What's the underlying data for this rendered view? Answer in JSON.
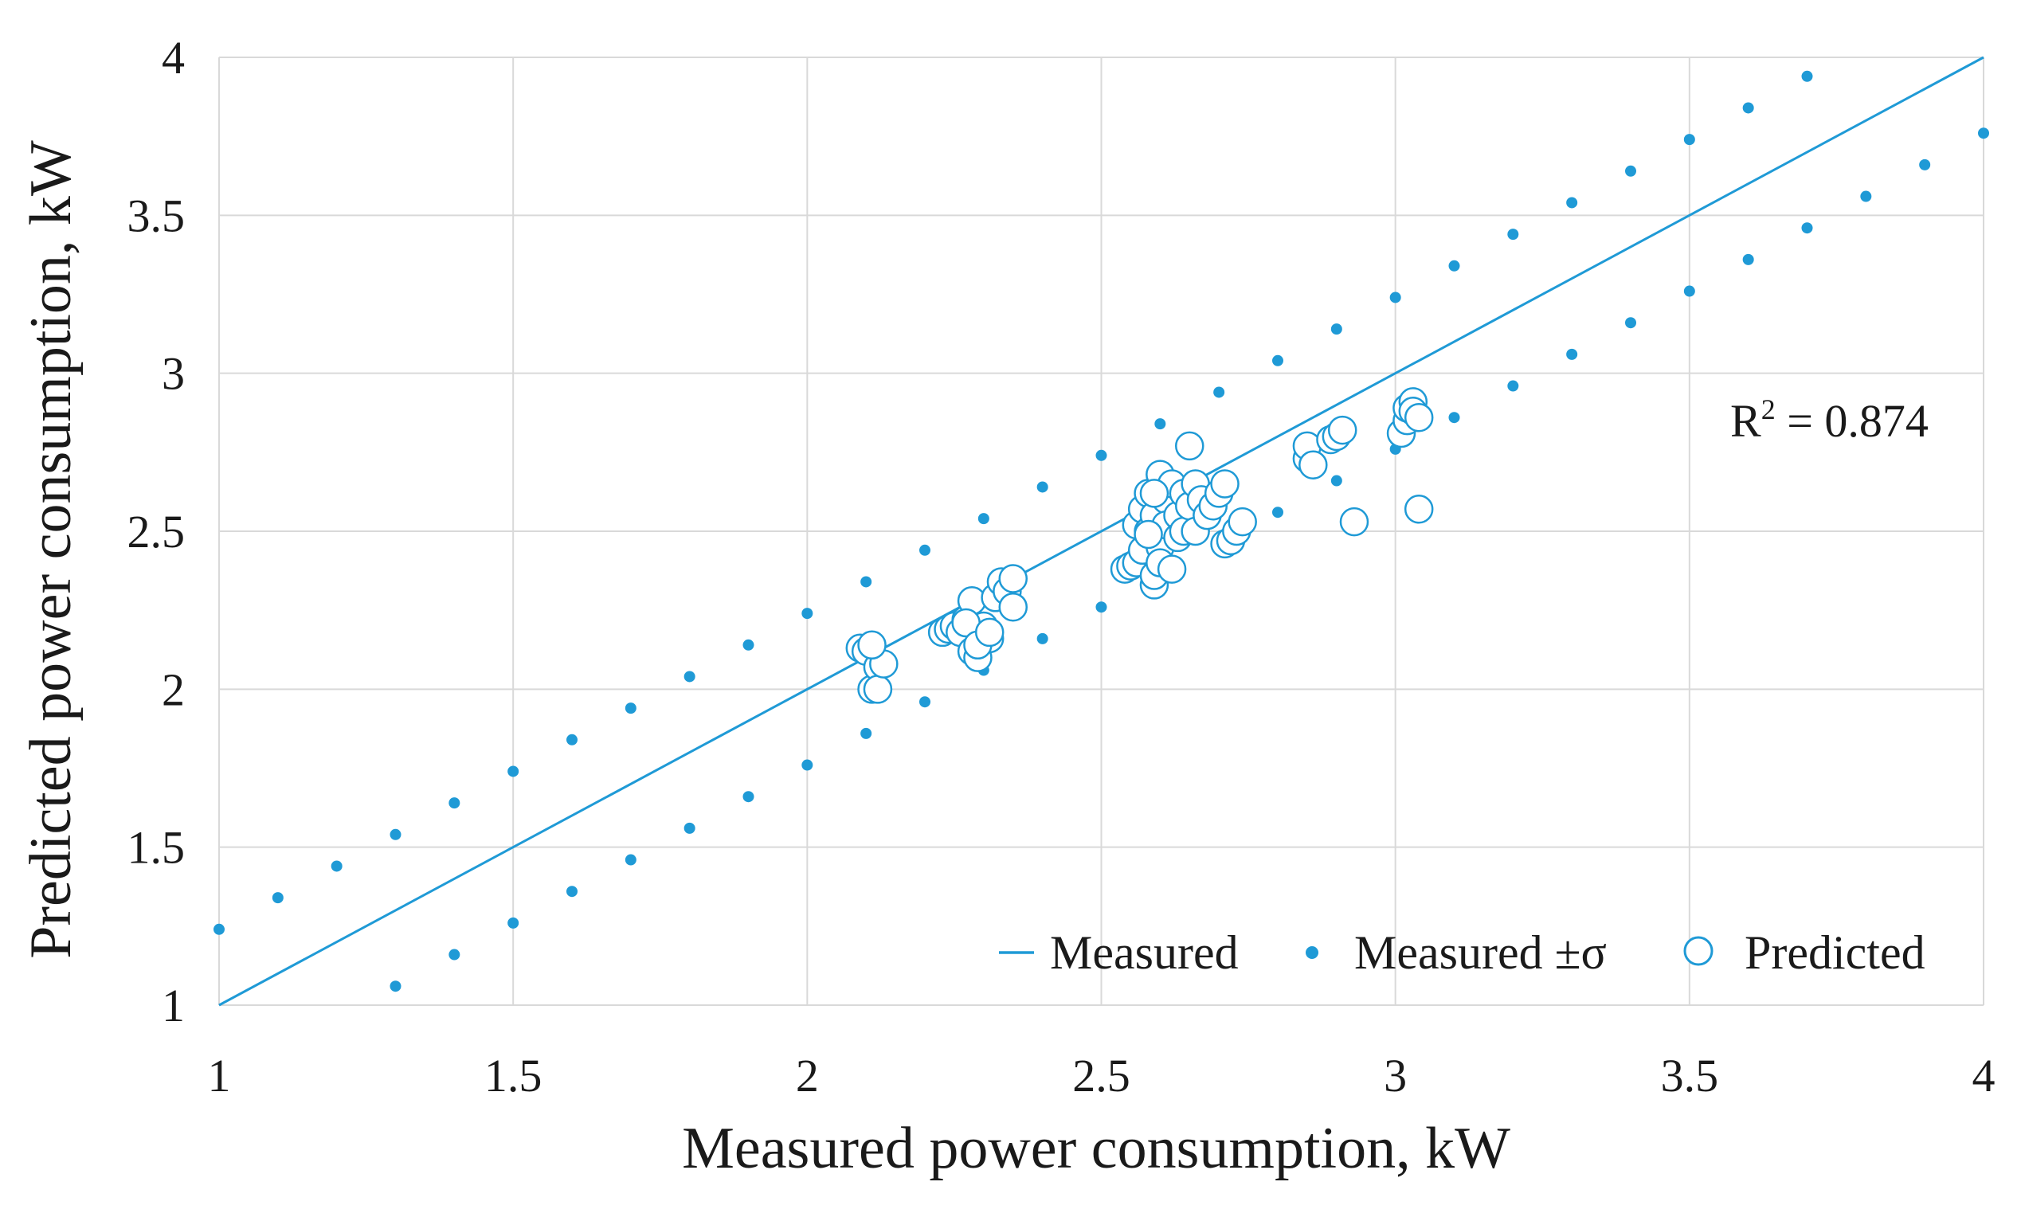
{
  "chart_data": {
    "type": "scatter",
    "title": "",
    "xlabel": "Measured power consumption, kW",
    "ylabel": "Predicted power consumption, kW",
    "xlim": [
      1,
      4
    ],
    "ylim": [
      1,
      4
    ],
    "xticks": [
      "1",
      "1.5",
      "2",
      "2.5",
      "3",
      "3.5",
      "4"
    ],
    "yticks": [
      "1",
      "1.5",
      "2",
      "2.5",
      "3",
      "3.5",
      "4"
    ],
    "grid": true,
    "legend_position": "bottom-right",
    "annotation": {
      "base": "R",
      "sup": "2",
      "rest": " = 0.874"
    },
    "colors": {
      "series": "#1f9ad6",
      "grid": "#d9d9d9",
      "text": "#1a1a1a"
    },
    "series": [
      {
        "name": "Measured",
        "kind": "line",
        "x": [
          1,
          4
        ],
        "y": [
          1,
          4
        ]
      },
      {
        "name": "Measured ±σ",
        "kind": "dots",
        "x": [
          1.0,
          1.1,
          1.2,
          1.3,
          1.4,
          1.5,
          1.6,
          1.7,
          1.8,
          1.9,
          2.0,
          2.1,
          2.2,
          2.3,
          2.4,
          2.5,
          2.6,
          2.7,
          2.8,
          2.9,
          3.0,
          3.1,
          3.2,
          3.3,
          3.4,
          3.5,
          3.6,
          3.7,
          1.3,
          1.4,
          1.5,
          1.6,
          1.7,
          1.8,
          1.9,
          2.0,
          2.1,
          2.2,
          2.3,
          2.4,
          2.5,
          2.6,
          2.7,
          2.8,
          2.9,
          3.0,
          3.1,
          3.2,
          3.3,
          3.4,
          3.5,
          3.6,
          3.7,
          3.8,
          3.9,
          4.0
        ],
        "y": [
          1.24,
          1.34,
          1.44,
          1.54,
          1.64,
          1.74,
          1.84,
          1.94,
          2.04,
          2.14,
          2.24,
          2.34,
          2.44,
          2.54,
          2.64,
          2.74,
          2.84,
          2.94,
          3.04,
          3.14,
          3.24,
          3.34,
          3.44,
          3.54,
          3.64,
          3.74,
          3.84,
          3.94,
          1.06,
          1.16,
          1.26,
          1.36,
          1.46,
          1.56,
          1.66,
          1.76,
          1.86,
          1.96,
          2.06,
          2.16,
          2.26,
          2.36,
          2.46,
          2.56,
          2.66,
          2.76,
          2.86,
          2.96,
          3.06,
          3.16,
          3.26,
          3.36,
          3.46,
          3.56,
          3.66,
          3.76
        ]
      },
      {
        "name": "Predicted",
        "kind": "open-circles",
        "x": [
          2.09,
          2.1,
          2.11,
          2.12,
          2.12,
          2.13,
          2.11,
          2.23,
          2.24,
          2.25,
          2.26,
          2.27,
          2.28,
          2.28,
          2.29,
          2.3,
          2.31,
          2.32,
          2.33,
          2.34,
          2.35,
          2.35,
          2.27,
          2.29,
          2.31,
          2.54,
          2.55,
          2.56,
          2.56,
          2.57,
          2.57,
          2.58,
          2.58,
          2.59,
          2.59,
          2.59,
          2.6,
          2.6,
          2.6,
          2.61,
          2.61,
          2.62,
          2.62,
          2.63,
          2.63,
          2.64,
          2.64,
          2.65,
          2.65,
          2.66,
          2.66,
          2.67,
          2.68,
          2.69,
          2.7,
          2.71,
          2.71,
          2.72,
          2.73,
          2.74,
          2.58,
          2.59,
          2.85,
          2.85,
          2.86,
          2.89,
          2.9,
          2.91,
          2.93,
          3.01,
          3.02,
          3.02,
          3.03,
          3.03,
          3.04,
          3.04
        ],
        "y": [
          2.13,
          2.12,
          2.0,
          2.07,
          2.0,
          2.08,
          2.14,
          2.18,
          2.19,
          2.2,
          2.18,
          2.22,
          2.28,
          2.12,
          2.1,
          2.2,
          2.16,
          2.29,
          2.34,
          2.31,
          2.26,
          2.35,
          2.21,
          2.14,
          2.18,
          2.38,
          2.39,
          2.52,
          2.4,
          2.44,
          2.57,
          2.5,
          2.62,
          2.55,
          2.33,
          2.36,
          2.45,
          2.68,
          2.4,
          2.6,
          2.52,
          2.38,
          2.65,
          2.55,
          2.48,
          2.62,
          2.5,
          2.58,
          2.77,
          2.65,
          2.5,
          2.6,
          2.55,
          2.58,
          2.62,
          2.46,
          2.65,
          2.47,
          2.5,
          2.53,
          2.49,
          2.62,
          2.73,
          2.77,
          2.71,
          2.79,
          2.8,
          2.82,
          2.53,
          2.81,
          2.85,
          2.89,
          2.91,
          2.88,
          2.86,
          2.57
        ]
      }
    ]
  }
}
